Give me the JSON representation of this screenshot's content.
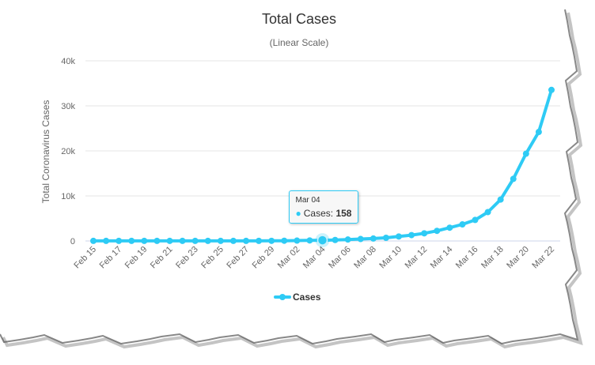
{
  "colors": {
    "series": "#2ecbf5",
    "grid": "#e6e6e6",
    "axis": "#ccd6eb",
    "background": "#ffffff",
    "torn_edge_shadow": "#555555"
  },
  "tooltip": {
    "date": "Mar 04",
    "series_name": "Cases:",
    "value": "158",
    "category_index": 18
  },
  "legend": {
    "label": "Cases"
  },
  "chart_data": {
    "type": "line",
    "title": "Total Cases",
    "subtitle": "(Linear Scale)",
    "xlabel": "",
    "ylabel": "Total Coronavirus Cases",
    "ylim": [
      0,
      40000
    ],
    "yticks": [
      0,
      10000,
      20000,
      30000,
      40000
    ],
    "ytick_labels": [
      "0",
      "10k",
      "20k",
      "30k",
      "40k"
    ],
    "categories": [
      "Feb 15",
      "Feb 16",
      "Feb 17",
      "Feb 18",
      "Feb 19",
      "Feb 20",
      "Feb 21",
      "Feb 22",
      "Feb 23",
      "Feb 24",
      "Feb 25",
      "Feb 26",
      "Feb 27",
      "Feb 28",
      "Feb 29",
      "Mar 01",
      "Mar 02",
      "Mar 03",
      "Mar 04",
      "Mar 05",
      "Mar 06",
      "Mar 07",
      "Mar 08",
      "Mar 09",
      "Mar 10",
      "Mar 11",
      "Mar 12",
      "Mar 13",
      "Mar 14",
      "Mar 15",
      "Mar 16",
      "Mar 17",
      "Mar 18",
      "Mar 19",
      "Mar 20",
      "Mar 21",
      "Mar 22"
    ],
    "xtick_labels": [
      "Feb 15",
      "Feb 17",
      "Feb 19",
      "Feb 21",
      "Feb 23",
      "Feb 25",
      "Feb 27",
      "Feb 29",
      "Mar 02",
      "Mar 04",
      "Mar 06",
      "Mar 08",
      "Mar 10",
      "Mar 12",
      "Mar 14",
      "Mar 16",
      "Mar 18",
      "Mar 20",
      "Mar 22"
    ],
    "series": [
      {
        "name": "Cases",
        "values": [
          15,
          15,
          15,
          15,
          15,
          15,
          15,
          15,
          15,
          15,
          15,
          15,
          16,
          24,
          30,
          53,
          80,
          118,
          158,
          221,
          319,
          435,
          541,
          704,
          994,
          1301,
          1697,
          2247,
          2943,
          3680,
          4663,
          6411,
          9197,
          13789,
          19383,
          24207,
          33546
        ]
      }
    ]
  }
}
